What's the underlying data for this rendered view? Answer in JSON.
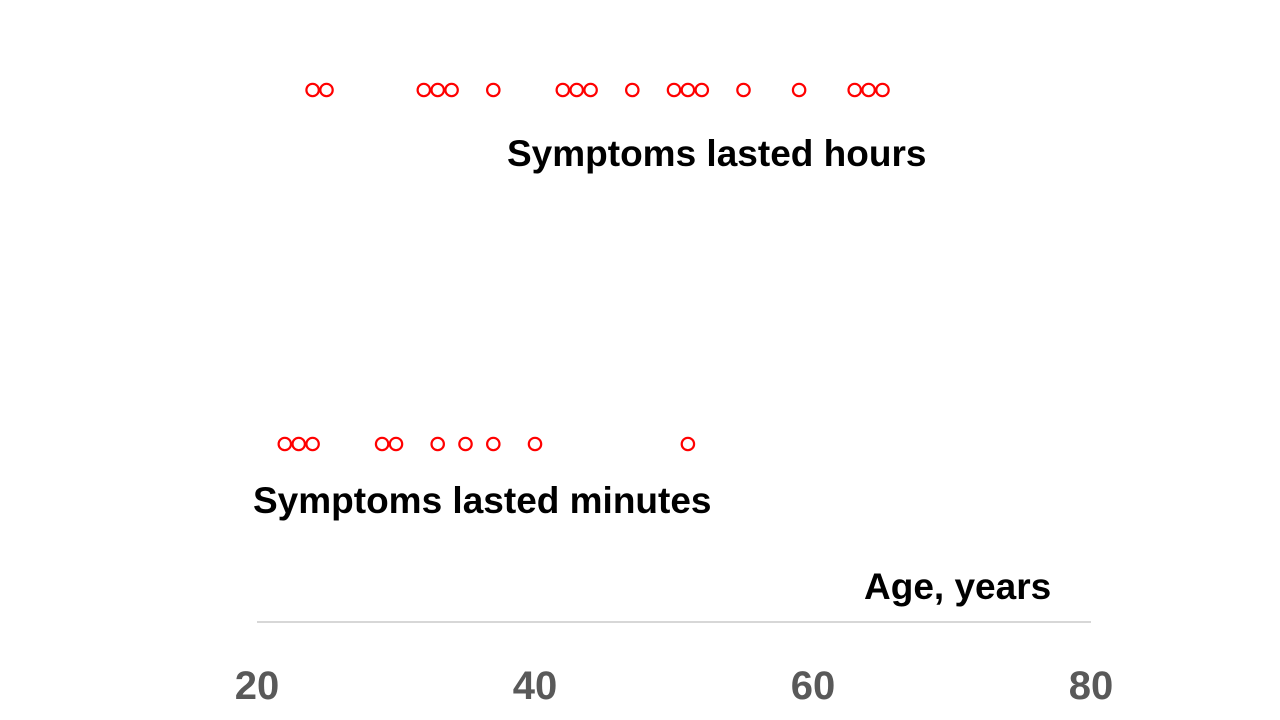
{
  "chart_data": {
    "type": "scatter",
    "title": "",
    "xlabel": "Age, years",
    "ylabel": "",
    "xlim": [
      20,
      80
    ],
    "grid": false,
    "legend": "none",
    "x_ticks": [
      "20",
      "40",
      "60",
      "80"
    ],
    "series": [
      {
        "name": "Symptoms lasted hours",
        "color": "#ff0000",
        "marker": "open-circle",
        "x": [
          24,
          25,
          32,
          33,
          34,
          37,
          42,
          43,
          44,
          47,
          50,
          51,
          52,
          55,
          59,
          63,
          64,
          65
        ]
      },
      {
        "name": "Symptoms lasted minutes",
        "color": "#ff0000",
        "marker": "open-circle",
        "x": [
          22,
          23,
          24,
          29,
          30,
          33,
          35,
          37,
          40,
          51
        ]
      }
    ]
  },
  "colors": {
    "marker": "#ff0000",
    "axis_line": "#bfbfbf",
    "tick_text": "#595959",
    "label_text": "#000000"
  }
}
